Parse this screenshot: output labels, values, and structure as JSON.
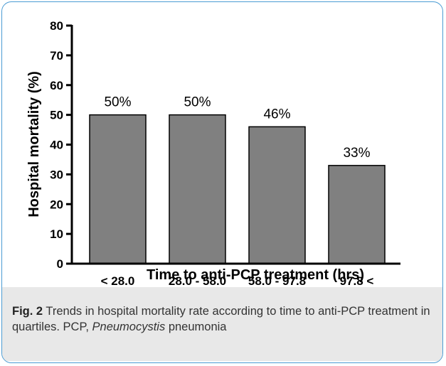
{
  "chart_data": {
    "type": "bar",
    "categories": [
      "< 28.0",
      "28.0 - 58.0",
      "58.0 - 97.8",
      "97.8 <"
    ],
    "values": [
      50,
      50,
      46,
      33
    ],
    "data_labels": [
      "50%",
      "50%",
      "46%",
      "33%"
    ],
    "xlabel": "Time to anti-PCP treatment (hrs)",
    "ylabel": "Hospital mortality (%)",
    "ylim": [
      0,
      80
    ],
    "yticks": [
      0,
      10,
      20,
      30,
      40,
      50,
      60,
      70,
      80
    ],
    "grid": false,
    "bar_color": "#808080"
  },
  "caption": {
    "fig_label": "Fig. 2",
    "text_before": " Trends in hospital mortality rate according to time to anti-PCP treatment in quartiles. PCP, ",
    "italic_term": "Pneumocystis",
    "text_after": " pneumonia"
  }
}
